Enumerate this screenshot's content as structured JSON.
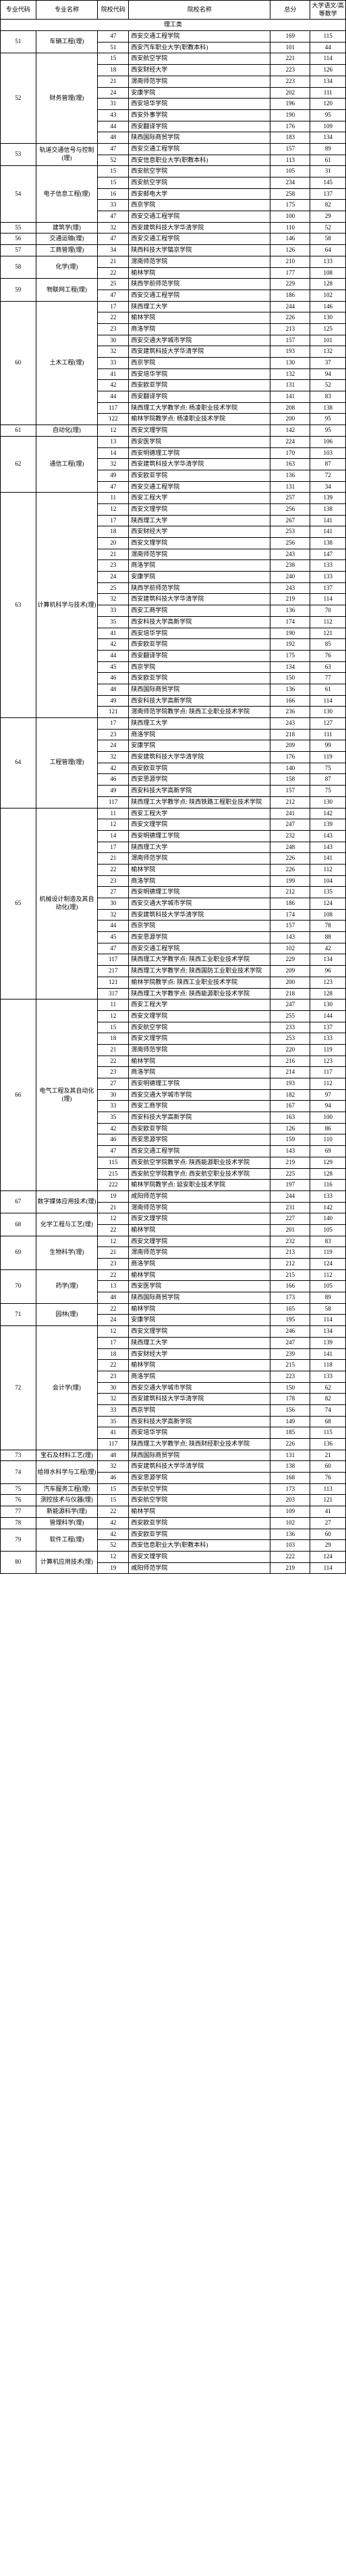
{
  "headers": {
    "major_code": "专业代码",
    "major_name": "专业名称",
    "school_code": "院校代码",
    "school_name": "院校名称",
    "total": "总分",
    "sub": "大学语文/高等数学"
  },
  "spanrow": {
    "label": "理工类"
  },
  "rows": [
    {
      "mc": "51",
      "mn": "车辆工程(理)",
      "sc": "47",
      "sn": "西安交通工程学院",
      "t": "169",
      "s": "115"
    },
    {
      "mc": "",
      "mn": "",
      "sc": "51",
      "sn": "西安汽车职业大学(职教本科)",
      "t": "101",
      "s": "44"
    },
    {
      "mc": "52",
      "mn": "财务管理(理)",
      "sc": "15",
      "sn": "西安航空学院",
      "t": "221",
      "s": "114"
    },
    {
      "mc": "",
      "mn": "",
      "sc": "18",
      "sn": "西安财经大学",
      "t": "223",
      "s": "126"
    },
    {
      "mc": "",
      "mn": "",
      "sc": "21",
      "sn": "渭南师范学院",
      "t": "223",
      "s": "134"
    },
    {
      "mc": "",
      "mn": "",
      "sc": "24",
      "sn": "安康学院",
      "t": "202",
      "s": "111"
    },
    {
      "mc": "",
      "mn": "",
      "sc": "31",
      "sn": "西安培华学院",
      "t": "196",
      "s": "120"
    },
    {
      "mc": "",
      "mn": "",
      "sc": "43",
      "sn": "西安外事学院",
      "t": "190",
      "s": "95"
    },
    {
      "mc": "",
      "mn": "",
      "sc": "44",
      "sn": "西安翻译学院",
      "t": "176",
      "s": "109"
    },
    {
      "mc": "",
      "mn": "",
      "sc": "48",
      "sn": "陕西国际商贸学院",
      "t": "183",
      "s": "134"
    },
    {
      "mc": "53",
      "mn": "轨道交通信号与控制(理)",
      "sc": "47",
      "sn": "西安交通工程学院",
      "t": "157",
      "s": "89"
    },
    {
      "mc": "",
      "mn": "",
      "sc": "52",
      "sn": "西安信息职业大学(职教本科)",
      "t": "113",
      "s": "61"
    },
    {
      "mc": "54",
      "mn": "电子信息工程(理)",
      "sc": "15",
      "sn": "西安航空学院",
      "t": "105",
      "s": "31"
    },
    {
      "mc": "",
      "mn": "",
      "sc": "15",
      "sn": "西安航空学院",
      "t": "234",
      "s": "145"
    },
    {
      "mc": "",
      "mn": "",
      "sc": "16",
      "sn": "西安邮电大学",
      "t": "258",
      "s": "137"
    },
    {
      "mc": "",
      "mn": "",
      "sc": "33",
      "sn": "西京学院",
      "t": "175",
      "s": "82"
    },
    {
      "mc": "",
      "mn": "",
      "sc": "47",
      "sn": "西安交通工程学院",
      "t": "100",
      "s": "29"
    },
    {
      "mc": "55",
      "mn": "建筑学(理)",
      "sc": "32",
      "sn": "西安建筑科技大学华清学院",
      "t": "110",
      "s": "52"
    },
    {
      "mc": "56",
      "mn": "交通运输(理)",
      "sc": "47",
      "sn": "西安交通工程学院",
      "t": "146",
      "s": "58"
    },
    {
      "mc": "57",
      "mn": "工商管理(理)",
      "sc": "34",
      "sn": "陕西科技大学镐京学院",
      "t": "126",
      "s": "64"
    },
    {
      "mc": "58",
      "mn": "化学(理)",
      "sc": "21",
      "sn": "渭南师范学院",
      "t": "210",
      "s": "133"
    },
    {
      "mc": "",
      "mn": "",
      "sc": "22",
      "sn": "榆林学院",
      "t": "177",
      "s": "108"
    },
    {
      "mc": "59",
      "mn": "物联网工程(理)",
      "sc": "25",
      "sn": "陕西学前师范学院",
      "t": "229",
      "s": "128"
    },
    {
      "mc": "",
      "mn": "",
      "sc": "47",
      "sn": "西安交通工程学院",
      "t": "186",
      "s": "102"
    },
    {
      "mc": "60",
      "mn": "土木工程(理)",
      "sc": "17",
      "sn": "陕西理工大学",
      "t": "244",
      "s": "146"
    },
    {
      "mc": "",
      "mn": "",
      "sc": "22",
      "sn": "榆林学院",
      "t": "226",
      "s": "130"
    },
    {
      "mc": "",
      "mn": "",
      "sc": "23",
      "sn": "商洛学院",
      "t": "213",
      "s": "125"
    },
    {
      "mc": "",
      "mn": "",
      "sc": "30",
      "sn": "西安交通大学城市学院",
      "t": "157",
      "s": "101"
    },
    {
      "mc": "",
      "mn": "",
      "sc": "32",
      "sn": "西安建筑科技大学华清学院",
      "t": "193",
      "s": "132"
    },
    {
      "mc": "",
      "mn": "",
      "sc": "33",
      "sn": "西京学院",
      "t": "130",
      "s": "37"
    },
    {
      "mc": "",
      "mn": "",
      "sc": "41",
      "sn": "西安培华学院",
      "t": "132",
      "s": "94"
    },
    {
      "mc": "",
      "mn": "",
      "sc": "42",
      "sn": "西安欧亚学院",
      "t": "131",
      "s": "52"
    },
    {
      "mc": "",
      "mn": "",
      "sc": "44",
      "sn": "西安翻译学院",
      "t": "141",
      "s": "83"
    },
    {
      "mc": "",
      "mn": "",
      "sc": "117",
      "sn": "陕西理工大学教学点: 杨凌职业技术学院",
      "t": "208",
      "s": "138"
    },
    {
      "mc": "",
      "mn": "",
      "sc": "122",
      "sn": "榆林学院教学点: 杨凌职业技术学院",
      "t": "200",
      "s": "95"
    },
    {
      "mc": "61",
      "mn": "自动化(理)",
      "sc": "12",
      "sn": "西安文理学院",
      "t": "142",
      "s": "95"
    },
    {
      "mc": "62",
      "mn": "通信工程(理)",
      "sc": "13",
      "sn": "西安医学院",
      "t": "224",
      "s": "106"
    },
    {
      "mc": "",
      "mn": "",
      "sc": "14",
      "sn": "西安明德理工学院",
      "t": "170",
      "s": "103"
    },
    {
      "mc": "",
      "mn": "",
      "sc": "32",
      "sn": "西安建筑科技大学华清学院",
      "t": "163",
      "s": "87"
    },
    {
      "mc": "",
      "mn": "",
      "sc": "49",
      "sn": "西安欧亚学院",
      "t": "136",
      "s": "72"
    },
    {
      "mc": "",
      "mn": "",
      "sc": "47",
      "sn": "西安交通工程学院",
      "t": "131",
      "s": "34"
    },
    {
      "mc": "63",
      "mn": "计算机科学与技术(理)",
      "sc": "11",
      "sn": "西安工程大学",
      "t": "257",
      "s": "139"
    },
    {
      "mc": "",
      "mn": "",
      "sc": "12",
      "sn": "西安文理学院",
      "t": "256",
      "s": "138"
    },
    {
      "mc": "",
      "mn": "",
      "sc": "17",
      "sn": "陕西理工大学",
      "t": "267",
      "s": "141"
    },
    {
      "mc": "",
      "mn": "",
      "sc": "18",
      "sn": "西安财经大学",
      "t": "253",
      "s": "141"
    },
    {
      "mc": "",
      "mn": "",
      "sc": "20",
      "sn": "西安文理学院",
      "t": "256",
      "s": "138"
    },
    {
      "mc": "",
      "mn": "",
      "sc": "21",
      "sn": "渭南师范学院",
      "t": "243",
      "s": "147"
    },
    {
      "mc": "",
      "mn": "",
      "sc": "23",
      "sn": "商洛学院",
      "t": "238",
      "s": "133"
    },
    {
      "mc": "",
      "mn": "",
      "sc": "24",
      "sn": "安康学院",
      "t": "240",
      "s": "133"
    },
    {
      "mc": "",
      "mn": "",
      "sc": "25",
      "sn": "陕西学前师范学院",
      "t": "243",
      "s": "137"
    },
    {
      "mc": "",
      "mn": "",
      "sc": "32",
      "sn": "西安建筑科技大学华清学院",
      "t": "219",
      "s": "114"
    },
    {
      "mc": "",
      "mn": "",
      "sc": "33",
      "sn": "西安工商学院",
      "t": "136",
      "s": "70"
    },
    {
      "mc": "",
      "mn": "",
      "sc": "35",
      "sn": "西安科技大学高新学院",
      "t": "174",
      "s": "112"
    },
    {
      "mc": "",
      "mn": "",
      "sc": "41",
      "sn": "西安培华学院",
      "t": "190",
      "s": "121"
    },
    {
      "mc": "",
      "mn": "",
      "sc": "42",
      "sn": "西安欧亚学院",
      "t": "192",
      "s": "85"
    },
    {
      "mc": "",
      "mn": "",
      "sc": "44",
      "sn": "西安翻译学院",
      "t": "175",
      "s": "76"
    },
    {
      "mc": "",
      "mn": "",
      "sc": "45",
      "sn": "西京学院",
      "t": "134",
      "s": "63"
    },
    {
      "mc": "",
      "mn": "",
      "sc": "46",
      "sn": "西安欧亚学院",
      "t": "150",
      "s": "77"
    },
    {
      "mc": "",
      "mn": "",
      "sc": "48",
      "sn": "陕西国际商贸学院",
      "t": "136",
      "s": "61"
    },
    {
      "mc": "",
      "mn": "",
      "sc": "49",
      "sn": "西安科技大学高新学院",
      "t": "166",
      "s": "114"
    },
    {
      "mc": "",
      "mn": "",
      "sc": "121",
      "sn": "渭南师范学院教学点: 陕西工业职业技术学院",
      "t": "236",
      "s": "130"
    },
    {
      "mc": "64",
      "mn": "工程管理(理)",
      "sc": "17",
      "sn": "陕西理工大学",
      "t": "243",
      "s": "127"
    },
    {
      "mc": "",
      "mn": "",
      "sc": "23",
      "sn": "商洛学院",
      "t": "218",
      "s": "111"
    },
    {
      "mc": "",
      "mn": "",
      "sc": "24",
      "sn": "安康学院",
      "t": "209",
      "s": "99"
    },
    {
      "mc": "",
      "mn": "",
      "sc": "32",
      "sn": "西安建筑科技大学华清学院",
      "t": "176",
      "s": "119"
    },
    {
      "mc": "",
      "mn": "",
      "sc": "42",
      "sn": "西安欧亚学院",
      "t": "140",
      "s": "75"
    },
    {
      "mc": "",
      "mn": "",
      "sc": "46",
      "sn": "西安思源学院",
      "t": "158",
      "s": "87"
    },
    {
      "mc": "",
      "mn": "",
      "sc": "49",
      "sn": "西安科技大学高新学院",
      "t": "157",
      "s": "75"
    },
    {
      "mc": "",
      "mn": "",
      "sc": "117",
      "sn": "陕西理工大学教学点: 陕西铁路工程职业技术学院",
      "t": "212",
      "s": "130"
    },
    {
      "mc": "65",
      "mn": "机械设计制造及其自动化(理)",
      "sc": "11",
      "sn": "西安工程大学",
      "t": "241",
      "s": "142"
    },
    {
      "mc": "",
      "mn": "",
      "sc": "12",
      "sn": "西安文理学院",
      "t": "247",
      "s": "139"
    },
    {
      "mc": "",
      "mn": "",
      "sc": "14",
      "sn": "西安明德理工学院",
      "t": "232",
      "s": "143"
    },
    {
      "mc": "",
      "mn": "",
      "sc": "17",
      "sn": "陕西理工大学",
      "t": "248",
      "s": "143"
    },
    {
      "mc": "",
      "mn": "",
      "sc": "21",
      "sn": "渭南师范学院",
      "t": "226",
      "s": "141"
    },
    {
      "mc": "",
      "mn": "",
      "sc": "22",
      "sn": "榆林学院",
      "t": "226",
      "s": "112"
    },
    {
      "mc": "",
      "mn": "",
      "sc": "23",
      "sn": "商洛学院",
      "t": "199",
      "s": "104"
    },
    {
      "mc": "",
      "mn": "",
      "sc": "27",
      "sn": "西安明德理工学院",
      "t": "212",
      "s": "135"
    },
    {
      "mc": "",
      "mn": "",
      "sc": "30",
      "sn": "西安交通大学城市学院",
      "t": "186",
      "s": "124"
    },
    {
      "mc": "",
      "mn": "",
      "sc": "32",
      "sn": "西安建筑科技大学华清学院",
      "t": "174",
      "s": "108"
    },
    {
      "mc": "",
      "mn": "",
      "sc": "44",
      "sn": "西京学院",
      "t": "157",
      "s": "78"
    },
    {
      "mc": "",
      "mn": "",
      "sc": "45",
      "sn": "西安思源学院",
      "t": "143",
      "s": "88"
    },
    {
      "mc": "",
      "mn": "",
      "sc": "47",
      "sn": "西安交通工程学院",
      "t": "102",
      "s": "42"
    },
    {
      "mc": "",
      "mn": "",
      "sc": "117",
      "sn": "陕西理工大学教学点: 陕西工业职业技术学院",
      "t": "229",
      "s": "134"
    },
    {
      "mc": "",
      "mn": "",
      "sc": "217",
      "sn": "陕西理工大学教学点: 陕西国防工业职业技术学院",
      "t": "209",
      "s": "96"
    },
    {
      "mc": "",
      "mn": "",
      "sc": "121",
      "sn": "榆林学院教学点: 陕西工业职业技术学院",
      "t": "200",
      "s": "123"
    },
    {
      "mc": "",
      "mn": "",
      "sc": "317",
      "sn": "陕西理工大学教学点: 陕西能源职业技术学院",
      "t": "218",
      "s": "128"
    },
    {
      "mc": "66",
      "mn": "电气工程及其自动化(理)",
      "sc": "11",
      "sn": "西安工程大学",
      "t": "247",
      "s": "130"
    },
    {
      "mc": "",
      "mn": "",
      "sc": "12",
      "sn": "西安文理学院",
      "t": "255",
      "s": "144"
    },
    {
      "mc": "",
      "mn": "",
      "sc": "15",
      "sn": "西安航空学院",
      "t": "233",
      "s": "137"
    },
    {
      "mc": "",
      "mn": "",
      "sc": "18",
      "sn": "西安文理学院",
      "t": "253",
      "s": "133"
    },
    {
      "mc": "",
      "mn": "",
      "sc": "21",
      "sn": "渭南师范学院",
      "t": "220",
      "s": "119"
    },
    {
      "mc": "",
      "mn": "",
      "sc": "22",
      "sn": "榆林学院",
      "t": "216",
      "s": "123"
    },
    {
      "mc": "",
      "mn": "",
      "sc": "23",
      "sn": "商洛学院",
      "t": "214",
      "s": "117"
    },
    {
      "mc": "",
      "mn": "",
      "sc": "27",
      "sn": "西安明德理工学院",
      "t": "193",
      "s": "112"
    },
    {
      "mc": "",
      "mn": "",
      "sc": "30",
      "sn": "西安交通大学城市学院",
      "t": "182",
      "s": "97"
    },
    {
      "mc": "",
      "mn": "",
      "sc": "33",
      "sn": "西安工商学院",
      "t": "167",
      "s": "94"
    },
    {
      "mc": "",
      "mn": "",
      "sc": "35",
      "sn": "西安科技大学高新学院",
      "t": "163",
      "s": "100"
    },
    {
      "mc": "",
      "mn": "",
      "sc": "42",
      "sn": "西安欧亚学院",
      "t": "126",
      "s": "86"
    },
    {
      "mc": "",
      "mn": "",
      "sc": "46",
      "sn": "西安思源学院",
      "t": "159",
      "s": "110"
    },
    {
      "mc": "",
      "mn": "",
      "sc": "47",
      "sn": "西安交通工程学院",
      "t": "143",
      "s": "69"
    },
    {
      "mc": "",
      "mn": "",
      "sc": "115",
      "sn": "西安航空学院教学点: 陕西能源职业技术学院",
      "t": "219",
      "s": "129"
    },
    {
      "mc": "",
      "mn": "",
      "sc": "215",
      "sn": "西安航空学院教学点: 西安航空职业技术学院",
      "t": "225",
      "s": "128"
    },
    {
      "mc": "",
      "mn": "",
      "sc": "222",
      "sn": "榆林学院教学点: 延安职业技术学院",
      "t": "197",
      "s": "116"
    },
    {
      "mc": "67",
      "mn": "数字媒体应用技术(理)",
      "sc": "19",
      "sn": "咸阳师范学院",
      "t": "244",
      "s": "133"
    },
    {
      "mc": "",
      "mn": "",
      "sc": "21",
      "sn": "渭南师范学院",
      "t": "231",
      "s": "142"
    },
    {
      "mc": "68",
      "mn": "化学工程与工艺(理)",
      "sc": "12",
      "sn": "西安文理学院",
      "t": "227",
      "s": "140"
    },
    {
      "mc": "",
      "mn": "",
      "sc": "22",
      "sn": "榆林学院",
      "t": "201",
      "s": "105"
    },
    {
      "mc": "69",
      "mn": "生物科学(理)",
      "sc": "12",
      "sn": "西安文理学院",
      "t": "232",
      "s": "83"
    },
    {
      "mc": "",
      "mn": "",
      "sc": "21",
      "sn": "渭南师范学院",
      "t": "213",
      "s": "119"
    },
    {
      "mc": "",
      "mn": "",
      "sc": "23",
      "sn": "商洛学院",
      "t": "212",
      "s": "124"
    },
    {
      "mc": "70",
      "mn": "药学(理)",
      "sc": "22",
      "sn": "榆林学院",
      "t": "215",
      "s": "112"
    },
    {
      "mc": "",
      "mn": "",
      "sc": "13",
      "sn": "西安医学院",
      "t": "166",
      "s": "105"
    },
    {
      "mc": "",
      "mn": "",
      "sc": "48",
      "sn": "陕西国际商贸学院",
      "t": "173",
      "s": "89"
    },
    {
      "mc": "71",
      "mn": "园林(理)",
      "sc": "22",
      "sn": "榆林学院",
      "t": "165",
      "s": "58"
    },
    {
      "mc": "",
      "mn": "",
      "sc": "24",
      "sn": "安康学院",
      "t": "195",
      "s": "114"
    },
    {
      "mc": "72",
      "mn": "会计学(理)",
      "sc": "12",
      "sn": "西安文理学院",
      "t": "246",
      "s": "134"
    },
    {
      "mc": "",
      "mn": "",
      "sc": "17",
      "sn": "陕西理工大学",
      "t": "247",
      "s": "139"
    },
    {
      "mc": "",
      "mn": "",
      "sc": "18",
      "sn": "西安财经大学",
      "t": "239",
      "s": "141"
    },
    {
      "mc": "",
      "mn": "",
      "sc": "22",
      "sn": "榆林学院",
      "t": "215",
      "s": "118"
    },
    {
      "mc": "",
      "mn": "",
      "sc": "23",
      "sn": "商洛学院",
      "t": "223",
      "s": "133"
    },
    {
      "mc": "",
      "mn": "",
      "sc": "30",
      "sn": "西安交通大学城市学院",
      "t": "150",
      "s": "62"
    },
    {
      "mc": "",
      "mn": "",
      "sc": "32",
      "sn": "西安建筑科技大学华清学院",
      "t": "178",
      "s": "82"
    },
    {
      "mc": "",
      "mn": "",
      "sc": "33",
      "sn": "西京学院",
      "t": "156",
      "s": "74"
    },
    {
      "mc": "",
      "mn": "",
      "sc": "35",
      "sn": "西安科技大学高新学院",
      "t": "149",
      "s": "68"
    },
    {
      "mc": "",
      "mn": "",
      "sc": "41",
      "sn": "西安培华学院",
      "t": "185",
      "s": "115"
    },
    {
      "mc": "",
      "mn": "",
      "sc": "117",
      "sn": "陕西理工大学教学点: 陕西财经职业技术学院",
      "t": "226",
      "s": "136"
    },
    {
      "mc": "73",
      "mn": "宝石及材料工艺(理)",
      "sc": "48",
      "sn": "陕西国际商贸学院",
      "t": "131",
      "s": "21"
    },
    {
      "mc": "74",
      "mn": "给排水科学与工程(理)",
      "sc": "32",
      "sn": "西安建筑科技大学华清学院",
      "t": "138",
      "s": "60"
    },
    {
      "mc": "",
      "mn": "",
      "sc": "46",
      "sn": "西安思源学院",
      "t": "168",
      "s": "76"
    },
    {
      "mc": "75",
      "mn": "汽车服务工程(理)",
      "sc": "15",
      "sn": "西安航空学院",
      "t": "173",
      "s": "113"
    },
    {
      "mc": "76",
      "mn": "测控技术与仪器(理)",
      "sc": "15",
      "sn": "西安航空学院",
      "t": "203",
      "s": "121"
    },
    {
      "mc": "77",
      "mn": "新能源科学(理)",
      "sc": "22",
      "sn": "榆林学院",
      "t": "109",
      "s": "41"
    },
    {
      "mc": "78",
      "mn": "管理科学(理)",
      "sc": "42",
      "sn": "西安欧亚学院",
      "t": "102",
      "s": "27"
    },
    {
      "mc": "79",
      "mn": "软件工程(理)",
      "sc": "42",
      "sn": "西安欧亚学院",
      "t": "136",
      "s": "60"
    },
    {
      "mc": "",
      "mn": "",
      "sc": "52",
      "sn": "西安信息职业大学(职教本科)",
      "t": "103",
      "s": "29"
    },
    {
      "mc": "80",
      "mn": "计算机应用技术(理)",
      "sc": "12",
      "sn": "西安文理学院",
      "t": "222",
      "s": "124"
    },
    {
      "mc": "",
      "mn": "",
      "sc": "19",
      "sn": "咸阳师范学院",
      "t": "219",
      "s": "114"
    }
  ]
}
